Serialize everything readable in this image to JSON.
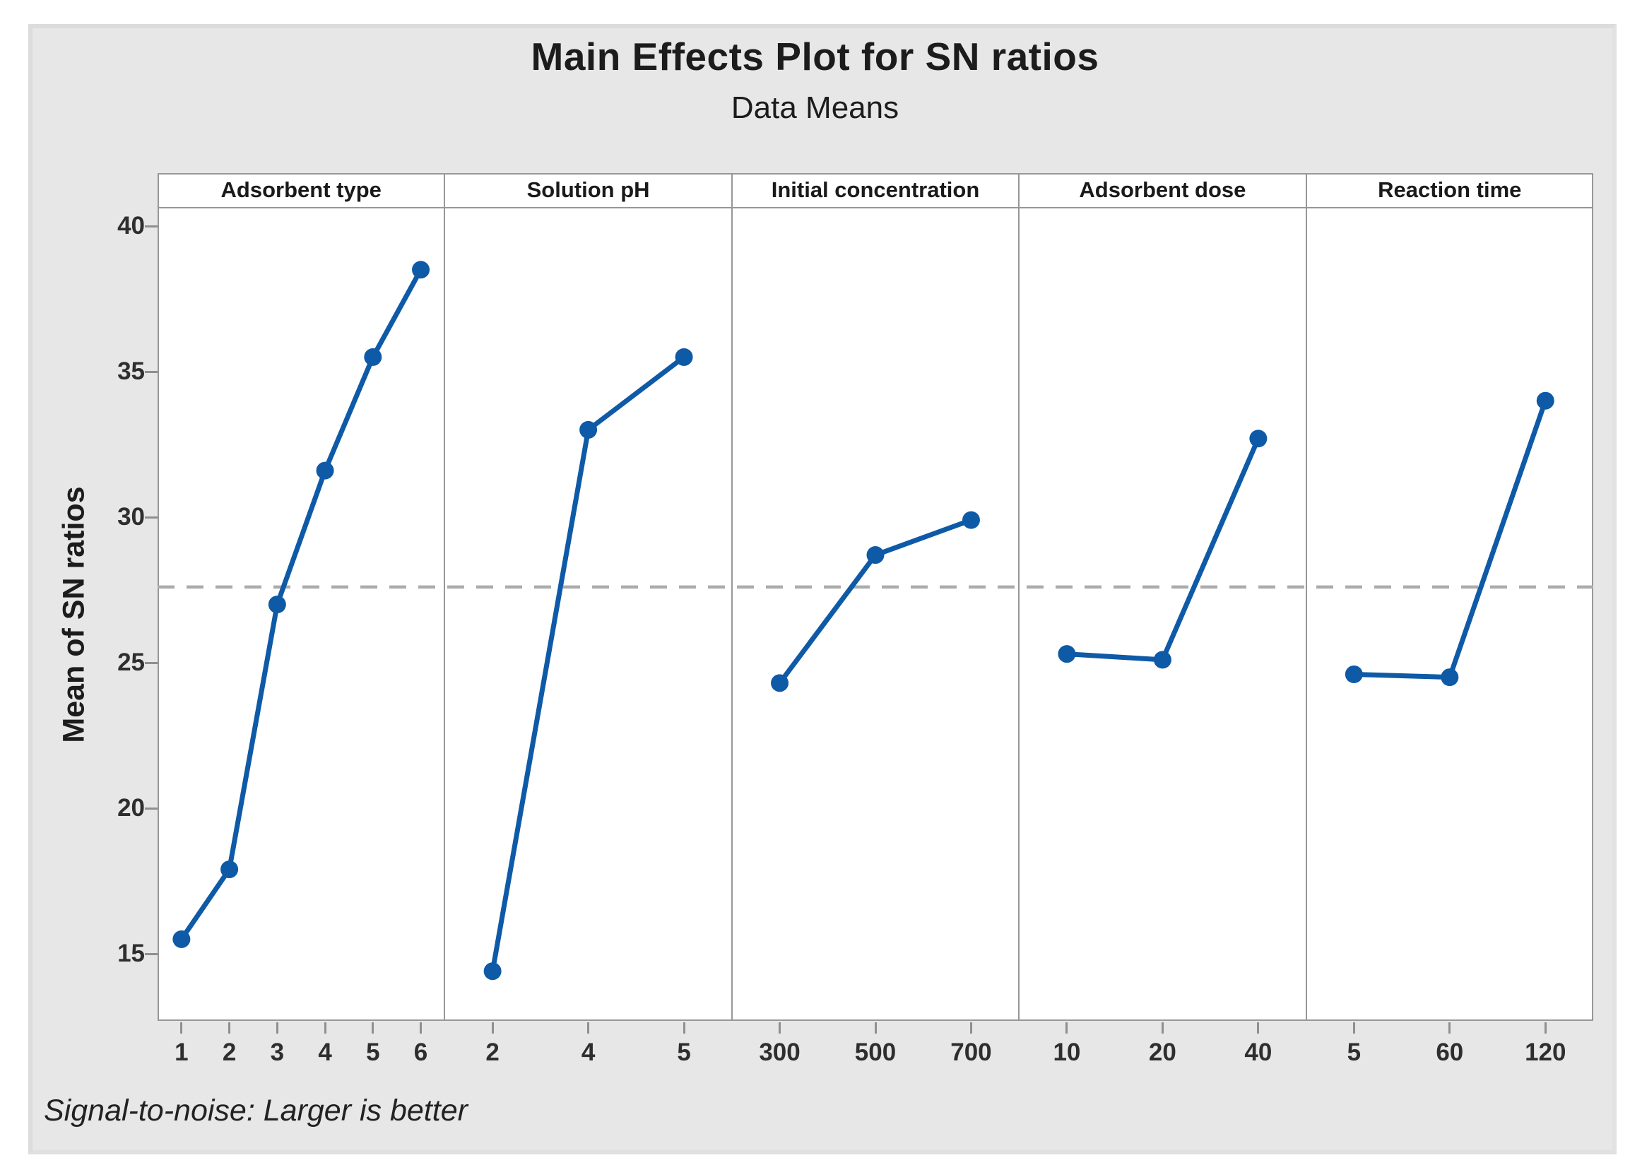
{
  "figure": {
    "title": "Main Effects Plot for SN ratios",
    "subtitle": "Data Means",
    "footer_note": "Signal-to-noise: Larger is better"
  },
  "chart_data": {
    "type": "line",
    "title": "Main Effects Plot for SN ratios",
    "subtitle": "Data Means",
    "ylabel": "Mean of SN ratios",
    "yticks": [
      40,
      35,
      30,
      25,
      20,
      15
    ],
    "ylim": [
      12.7,
      40.7
    ],
    "grid": false,
    "legend": "none",
    "reference_line_mean": 27.6,
    "panels": [
      {
        "label": "Adsorbent type",
        "categories": [
          "1",
          "2",
          "3",
          "4",
          "5",
          "6"
        ],
        "values": [
          15.5,
          17.9,
          27.0,
          31.6,
          35.5,
          38.5
        ]
      },
      {
        "label": "Solution pH",
        "categories": [
          "2",
          "4",
          "5"
        ],
        "values": [
          14.4,
          33.0,
          35.5
        ]
      },
      {
        "label": "Initial concentration",
        "categories": [
          "300",
          "500",
          "700"
        ],
        "values": [
          24.3,
          28.7,
          29.9
        ]
      },
      {
        "label": "Adsorbent dose",
        "categories": [
          "10",
          "20",
          "40"
        ],
        "values": [
          25.3,
          25.1,
          32.7
        ]
      },
      {
        "label": "Reaction time",
        "categories": [
          "5",
          "60",
          "120"
        ],
        "values": [
          24.6,
          24.5,
          34.0
        ]
      }
    ],
    "line_color": "#0e5aa7",
    "marker": "circle",
    "reference_line_color": "#ababab",
    "frame_color": "#979797",
    "plot_background": "#ffffff",
    "figure_background": "#e7e7e7"
  }
}
